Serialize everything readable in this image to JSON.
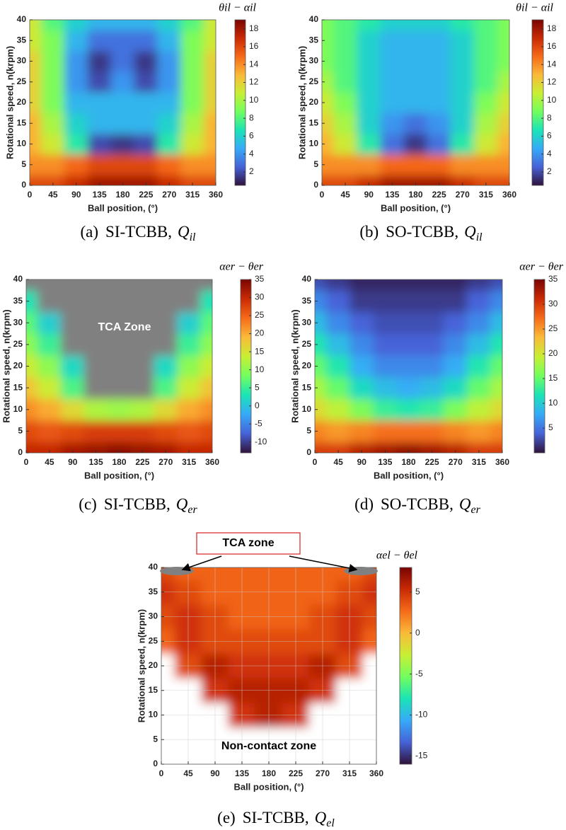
{
  "chart_data": [
    {
      "type": "heatmap",
      "caption": {
        "label": "(a)",
        "name": "SI-TCBB,",
        "symbol": "Q",
        "subscript": "il"
      },
      "colorbar_title": "θil − αil",
      "xlabel": "Ball position, (°)",
      "ylabel": "Rotational speed, n(krpm)",
      "x": [
        0,
        45,
        90,
        135,
        180,
        225,
        270,
        315,
        360
      ],
      "y": [
        0,
        5,
        10,
        15,
        20,
        25,
        30,
        35,
        40
      ],
      "xlim": [
        0,
        360
      ],
      "ylim": [
        0,
        40
      ],
      "xticks": [
        0,
        45,
        90,
        135,
        180,
        225,
        270,
        315,
        360
      ],
      "yticks": [
        0,
        5,
        10,
        15,
        20,
        25,
        30,
        35,
        40
      ],
      "zlim": [
        0.5,
        19
      ],
      "zticks": [
        2,
        4,
        6,
        8,
        10,
        12,
        14,
        16,
        18
      ],
      "grid": false,
      "null_color": "#808080",
      "colorscale": [
        "#30123b",
        "#4662d7",
        "#36aaf9",
        "#1ae4b6",
        "#72fe5e",
        "#c8ef34",
        "#faba39",
        "#f66b19",
        "#ca2a04",
        "#7a0403"
      ],
      "z": [
        [
          16,
          16,
          17,
          18,
          18,
          18,
          17,
          16,
          16
        ],
        [
          14,
          14,
          15,
          16,
          16,
          16,
          15,
          14,
          14
        ],
        [
          13,
          11,
          7,
          2,
          1.5,
          2,
          7,
          11,
          13
        ],
        [
          13,
          10,
          6,
          5,
          5,
          5,
          6,
          10,
          13
        ],
        [
          12,
          9,
          5,
          5,
          5,
          5,
          5,
          9,
          12
        ],
        [
          12,
          9,
          4,
          2,
          4,
          2,
          4,
          9,
          12
        ],
        [
          12,
          9,
          4,
          1.5,
          3,
          1.5,
          4,
          9,
          12
        ],
        [
          11,
          9,
          5,
          3,
          3,
          3,
          5,
          9,
          11
        ],
        [
          11,
          8,
          6,
          5,
          5,
          5,
          6,
          8,
          11
        ]
      ],
      "annotations": []
    },
    {
      "type": "heatmap",
      "caption": {
        "label": "(b)",
        "name": "SO-TCBB,",
        "symbol": "Q",
        "subscript": "il"
      },
      "colorbar_title": "θil − αil",
      "xlabel": "Ball position, (°)",
      "ylabel": "Rotational speed, n(krpm)",
      "x": [
        0,
        45,
        90,
        135,
        180,
        225,
        270,
        315,
        360
      ],
      "y": [
        0,
        5,
        10,
        15,
        20,
        25,
        30,
        35,
        40
      ],
      "xlim": [
        0,
        360
      ],
      "ylim": [
        0,
        40
      ],
      "xticks": [
        0,
        45,
        90,
        135,
        180,
        225,
        270,
        315,
        360
      ],
      "yticks": [
        0,
        5,
        10,
        15,
        20,
        25,
        30,
        35,
        40
      ],
      "zlim": [
        0.5,
        19
      ],
      "zticks": [
        2,
        4,
        6,
        8,
        10,
        12,
        14,
        16,
        18
      ],
      "grid": false,
      "null_color": "#808080",
      "colorscale": [
        "#30123b",
        "#4662d7",
        "#36aaf9",
        "#1ae4b6",
        "#72fe5e",
        "#c8ef34",
        "#faba39",
        "#f66b19",
        "#ca2a04",
        "#7a0403"
      ],
      "z": [
        [
          16,
          16,
          17,
          18,
          18,
          18,
          17,
          16,
          16
        ],
        [
          14,
          14,
          14,
          15,
          15,
          15,
          14,
          14,
          14
        ],
        [
          13,
          11,
          7,
          3,
          1.5,
          3,
          7,
          11,
          13
        ],
        [
          12,
          10,
          6,
          4,
          3,
          4,
          6,
          10,
          12
        ],
        [
          11,
          9,
          6,
          5,
          5,
          5,
          6,
          9,
          11
        ],
        [
          10,
          8,
          6,
          5,
          5,
          5,
          6,
          8,
          10
        ],
        [
          9,
          8,
          6,
          5,
          5,
          5,
          6,
          8,
          9
        ],
        [
          9,
          8,
          6,
          5,
          5,
          5,
          6,
          8,
          9
        ],
        [
          9,
          8,
          7,
          6,
          6,
          6,
          7,
          8,
          9
        ]
      ],
      "annotations": []
    },
    {
      "type": "heatmap",
      "caption": {
        "label": "(c)",
        "name": "SI-TCBB,",
        "symbol": "Q",
        "subscript": "er"
      },
      "colorbar_title": "αer − θer",
      "xlabel": "Ball position, (°)",
      "ylabel": "Rotational speed, n(krpm)",
      "x": [
        0,
        45,
        90,
        135,
        180,
        225,
        270,
        315,
        360
      ],
      "y": [
        0,
        5,
        10,
        15,
        20,
        25,
        30,
        35,
        40
      ],
      "xlim": [
        0,
        360
      ],
      "ylim": [
        0,
        40
      ],
      "xticks": [
        0,
        45,
        90,
        135,
        180,
        225,
        270,
        315,
        360
      ],
      "yticks": [
        0,
        5,
        10,
        15,
        20,
        25,
        30,
        35,
        40
      ],
      "zlim": [
        -13,
        35
      ],
      "zticks": [
        -10,
        -5,
        0,
        5,
        10,
        15,
        20,
        25,
        30,
        35
      ],
      "grid": false,
      "null_color": "#808080",
      "colorscale": [
        "#30123b",
        "#4662d7",
        "#36aaf9",
        "#1ae4b6",
        "#72fe5e",
        "#c8ef34",
        "#faba39",
        "#f66b19",
        "#ca2a04",
        "#7a0403"
      ],
      "z": [
        [
          30,
          30,
          32,
          33,
          34,
          33,
          32,
          30,
          30
        ],
        [
          27,
          26,
          27,
          28,
          28,
          28,
          27,
          26,
          27
        ],
        [
          22,
          20,
          16,
          12,
          11,
          12,
          16,
          20,
          22
        ],
        [
          18,
          14,
          6,
          null,
          null,
          null,
          6,
          14,
          18
        ],
        [
          14,
          10,
          2,
          null,
          null,
          null,
          2,
          10,
          14
        ],
        [
          10,
          5,
          null,
          null,
          null,
          null,
          null,
          5,
          10
        ],
        [
          7,
          1,
          null,
          null,
          null,
          null,
          null,
          1,
          7
        ],
        [
          3,
          null,
          null,
          null,
          null,
          null,
          null,
          null,
          3
        ],
        [
          null,
          null,
          null,
          null,
          null,
          null,
          null,
          null,
          null
        ]
      ],
      "annotations": [
        "TCA Zone"
      ]
    },
    {
      "type": "heatmap",
      "caption": {
        "label": "(d)",
        "name": "SO-TCBB,",
        "symbol": "Q",
        "subscript": "er"
      },
      "colorbar_title": "αer − θer",
      "xlabel": "Ball position, (°)",
      "ylabel": "Rotational speed, n(krpm)",
      "x": [
        0,
        45,
        90,
        135,
        180,
        225,
        270,
        315,
        360
      ],
      "y": [
        0,
        5,
        10,
        15,
        20,
        25,
        30,
        35,
        40
      ],
      "xlim": [
        0,
        360
      ],
      "ylim": [
        0,
        40
      ],
      "xticks": [
        0,
        45,
        90,
        135,
        180,
        225,
        270,
        315,
        360
      ],
      "yticks": [
        0,
        5,
        10,
        15,
        20,
        25,
        30,
        35,
        40
      ],
      "zlim": [
        0,
        35
      ],
      "zticks": [
        5,
        10,
        15,
        20,
        25,
        30,
        35
      ],
      "grid": false,
      "null_color": "#808080",
      "colorscale": [
        "#30123b",
        "#4662d7",
        "#36aaf9",
        "#1ae4b6",
        "#72fe5e",
        "#c8ef34",
        "#faba39",
        "#f66b19",
        "#ca2a04",
        "#7a0403"
      ],
      "z": [
        [
          30,
          30,
          32,
          33,
          34,
          33,
          32,
          30,
          30
        ],
        [
          26,
          25,
          26,
          27,
          27,
          27,
          26,
          25,
          26
        ],
        [
          21,
          19,
          16,
          13,
          12,
          13,
          16,
          19,
          21
        ],
        [
          18,
          15,
          11,
          9,
          8,
          9,
          11,
          15,
          18
        ],
        [
          15,
          12,
          8,
          6,
          6,
          6,
          8,
          12,
          15
        ],
        [
          12,
          9,
          6,
          4,
          4,
          4,
          6,
          9,
          12
        ],
        [
          9,
          6,
          4,
          3,
          3,
          3,
          4,
          6,
          9
        ],
        [
          6,
          4,
          2,
          2,
          2,
          2,
          2,
          4,
          6
        ],
        [
          3,
          2,
          1,
          1,
          1,
          1,
          1,
          2,
          3
        ]
      ],
      "annotations": []
    },
    {
      "type": "heatmap",
      "caption": {
        "label": "(e)",
        "name": "SI-TCBB,",
        "symbol": "Q",
        "subscript": "el"
      },
      "colorbar_title": "αel − θel",
      "xlabel": "Ball position, (°)",
      "ylabel": "Rotational speed, n(krpm)",
      "x": [
        0,
        45,
        90,
        135,
        180,
        225,
        270,
        315,
        360
      ],
      "y": [
        0,
        5,
        10,
        15,
        20,
        25,
        30,
        35,
        40
      ],
      "xlim": [
        0,
        360
      ],
      "ylim": [
        0,
        40
      ],
      "xticks": [
        0,
        45,
        90,
        135,
        180,
        225,
        270,
        315,
        360
      ],
      "yticks": [
        0,
        5,
        10,
        15,
        20,
        25,
        30,
        35,
        40
      ],
      "zlim": [
        -16,
        8
      ],
      "zticks": [
        -15,
        -10,
        -5,
        0,
        5
      ],
      "grid": true,
      "null_color": "#ffffff",
      "colorscale": [
        "#30123b",
        "#4662d7",
        "#36aaf9",
        "#1ae4b6",
        "#72fe5e",
        "#c8ef34",
        "#faba39",
        "#f66b19",
        "#ca2a04",
        "#7a0403"
      ],
      "z": [
        [
          null,
          null,
          null,
          null,
          null,
          null,
          null,
          null,
          null
        ],
        [
          null,
          null,
          null,
          null,
          null,
          null,
          null,
          null,
          null
        ],
        [
          null,
          null,
          null,
          5,
          6,
          5,
          null,
          null,
          null
        ],
        [
          null,
          null,
          5,
          6,
          6,
          6,
          5,
          null,
          null
        ],
        [
          null,
          4,
          6,
          5,
          5,
          5,
          6,
          4,
          null
        ],
        [
          3,
          5,
          4,
          4,
          4,
          4,
          4,
          5,
          3
        ],
        [
          4,
          5,
          4,
          3,
          3,
          3,
          4,
          5,
          4
        ],
        [
          5,
          4,
          3,
          3,
          3,
          3,
          3,
          4,
          5
        ],
        [
          4,
          3,
          3,
          3,
          3,
          3,
          3,
          3,
          4
        ]
      ],
      "annotations": [
        "TCA zone",
        "Non-contact zone"
      ]
    }
  ]
}
